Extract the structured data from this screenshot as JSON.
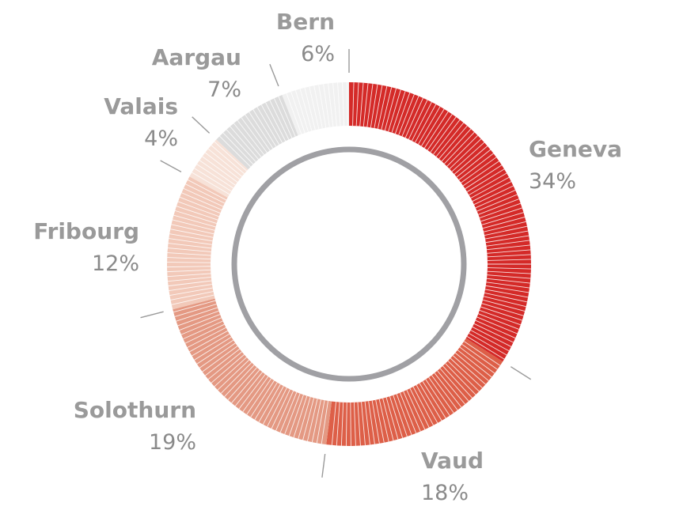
{
  "chart_data": {
    "type": "pie",
    "title": "",
    "categories": [
      "Geneva",
      "Vaud",
      "Solothurn",
      "Fribourg",
      "Valais",
      "Aargau",
      "Bern"
    ],
    "values": [
      34,
      18,
      19,
      12,
      4,
      7,
      6
    ],
    "labels": [
      "34%",
      "18%",
      "19%",
      "12%",
      "4%",
      "7%",
      "6%"
    ],
    "colors": [
      "#d42a28",
      "#dd5f48",
      "#e49983",
      "#f2c9b9",
      "#f7e2d8",
      "#dcdcdc",
      "#f1f1f1"
    ],
    "style": "donut",
    "inner_ring_color": "#a0a0a4"
  }
}
